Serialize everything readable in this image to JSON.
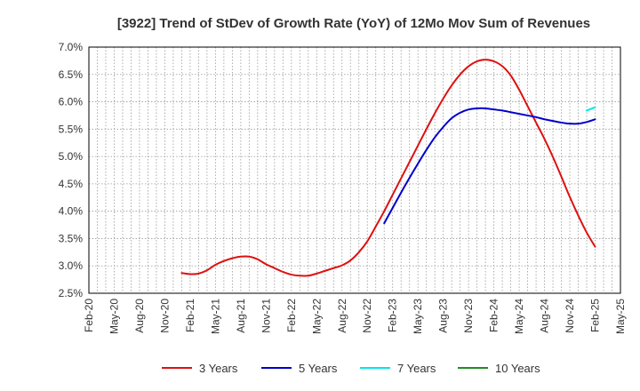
{
  "chart_data": {
    "type": "line",
    "title": "[3922]  Trend of StDev of Growth Rate (YoY) of 12Mo Mov Sum of Revenues",
    "xlabel": "",
    "ylabel": "",
    "x_ticks": [
      "Feb-20",
      "May-20",
      "Aug-20",
      "Nov-20",
      "Feb-21",
      "May-21",
      "Aug-21",
      "Nov-21",
      "Feb-22",
      "May-22",
      "Aug-22",
      "Nov-22",
      "Feb-23",
      "May-23",
      "Aug-23",
      "Nov-23",
      "Feb-24",
      "May-24",
      "Aug-24",
      "Nov-24",
      "Feb-25",
      "May-25"
    ],
    "y_ticks": [
      "7.0%",
      "6.5%",
      "6.0%",
      "5.5%",
      "5.0%",
      "4.5%",
      "4.0%",
      "3.5%",
      "3.0%",
      "2.5%"
    ],
    "ylim": [
      2.5,
      7.0
    ],
    "grid": true,
    "legend_position": "bottom",
    "series": [
      {
        "name": "3 Years",
        "color": "#dd1111",
        "points": [
          [
            "Jan-21",
            2.87
          ],
          [
            "Feb-21",
            2.85
          ],
          [
            "Mar-21",
            2.86
          ],
          [
            "Apr-21",
            2.92
          ],
          [
            "May-21",
            3.02
          ],
          [
            "Jun-21",
            3.09
          ],
          [
            "Jul-21",
            3.14
          ],
          [
            "Aug-21",
            3.17
          ],
          [
            "Sep-21",
            3.17
          ],
          [
            "Oct-21",
            3.12
          ],
          [
            "Nov-21",
            3.03
          ],
          [
            "Dec-21",
            2.96
          ],
          [
            "Jan-22",
            2.89
          ],
          [
            "Feb-22",
            2.84
          ],
          [
            "Mar-22",
            2.82
          ],
          [
            "Apr-22",
            2.82
          ],
          [
            "May-22",
            2.86
          ],
          [
            "Jun-22",
            2.91
          ],
          [
            "Jul-22",
            2.96
          ],
          [
            "Aug-22",
            3.01
          ],
          [
            "Sep-22",
            3.1
          ],
          [
            "Oct-22",
            3.25
          ],
          [
            "Nov-22",
            3.45
          ],
          [
            "Dec-22",
            3.72
          ],
          [
            "Jan-23",
            4.0
          ],
          [
            "Feb-23",
            4.3
          ],
          [
            "Mar-23",
            4.6
          ],
          [
            "Apr-23",
            4.9
          ],
          [
            "May-23",
            5.2
          ],
          [
            "Jun-23",
            5.5
          ],
          [
            "Jul-23",
            5.79
          ],
          [
            "Aug-23",
            6.06
          ],
          [
            "Sep-23",
            6.3
          ],
          [
            "Oct-23",
            6.5
          ],
          [
            "Nov-23",
            6.65
          ],
          [
            "Dec-23",
            6.74
          ],
          [
            "Jan-24",
            6.77
          ],
          [
            "Feb-24",
            6.74
          ],
          [
            "Mar-24",
            6.65
          ],
          [
            "Apr-24",
            6.48
          ],
          [
            "May-24",
            6.22
          ],
          [
            "Jun-24",
            5.92
          ],
          [
            "Jul-24",
            5.62
          ],
          [
            "Aug-24",
            5.32
          ],
          [
            "Sep-24",
            4.99
          ],
          [
            "Oct-24",
            4.63
          ],
          [
            "Nov-24",
            4.26
          ],
          [
            "Dec-24",
            3.92
          ],
          [
            "Jan-25",
            3.61
          ],
          [
            "Feb-25",
            3.35
          ]
        ]
      },
      {
        "name": "5 Years",
        "color": "#0000cc",
        "points": [
          [
            "Jan-23",
            3.78
          ],
          [
            "Feb-23",
            4.06
          ],
          [
            "Mar-23",
            4.34
          ],
          [
            "Apr-23",
            4.61
          ],
          [
            "May-23",
            4.87
          ],
          [
            "Jun-23",
            5.12
          ],
          [
            "Jul-23",
            5.35
          ],
          [
            "Aug-23",
            5.54
          ],
          [
            "Sep-23",
            5.7
          ],
          [
            "Oct-23",
            5.8
          ],
          [
            "Nov-23",
            5.86
          ],
          [
            "Dec-23",
            5.88
          ],
          [
            "Jan-24",
            5.88
          ],
          [
            "Feb-24",
            5.86
          ],
          [
            "Mar-24",
            5.84
          ],
          [
            "Apr-24",
            5.81
          ],
          [
            "May-24",
            5.78
          ],
          [
            "Jun-24",
            5.75
          ],
          [
            "Jul-24",
            5.72
          ],
          [
            "Aug-24",
            5.68
          ],
          [
            "Sep-24",
            5.65
          ],
          [
            "Oct-24",
            5.62
          ],
          [
            "Nov-24",
            5.6
          ],
          [
            "Dec-24",
            5.6
          ],
          [
            "Jan-25",
            5.63
          ],
          [
            "Feb-25",
            5.68
          ]
        ]
      },
      {
        "name": "7 Years",
        "color": "#00e5ee",
        "points": [
          [
            "Jan-25",
            5.84
          ],
          [
            "Feb-25",
            5.9
          ]
        ]
      },
      {
        "name": "10 Years",
        "color": "#228b22",
        "points": []
      }
    ]
  }
}
